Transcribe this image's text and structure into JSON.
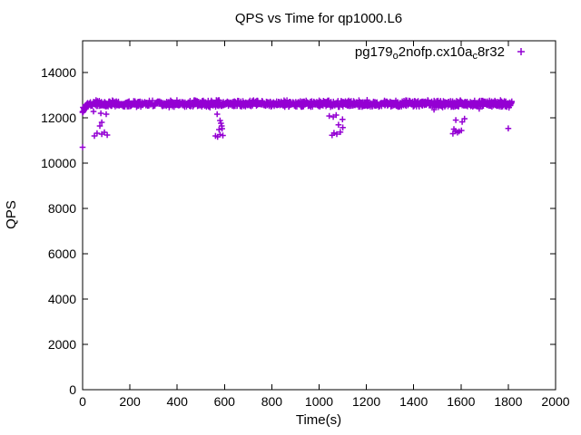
{
  "chart_data": {
    "type": "scatter",
    "title": "QPS vs Time for qp1000.L6",
    "xlabel": "Time(s)",
    "ylabel": "QPS",
    "xlim": [
      0,
      2000
    ],
    "ylim": [
      0,
      15400
    ],
    "xticks": [
      0,
      200,
      400,
      600,
      800,
      1000,
      1200,
      1400,
      1600,
      1800,
      2000
    ],
    "yticks": [
      0,
      2000,
      4000,
      6000,
      8000,
      10000,
      12000,
      14000
    ],
    "grid": false,
    "legend_position": "top-right-inside",
    "marker": "plus",
    "marker_color": "#9400d3",
    "series": [
      {
        "name": "pg179_o2nofp.cx10a_c8r32",
        "name_segments": [
          {
            "text": "pg179",
            "sub": false
          },
          {
            "text": "o",
            "sub": true
          },
          {
            "text": "2nofp.cx10a",
            "sub": false
          },
          {
            "text": "c",
            "sub": true
          },
          {
            "text": "8r32",
            "sub": false
          }
        ],
        "band": {
          "t_start": 0,
          "t_end": 1815,
          "step": 1.5,
          "qps_mean": 12620,
          "jitter": 170,
          "ramp_until": 25,
          "ramp_drop": 300
        },
        "outliers": [
          [
            0,
            12240
          ],
          [
            2,
            12260
          ],
          [
            6,
            12330
          ],
          [
            11,
            12400
          ],
          [
            16,
            12470
          ],
          [
            46,
            12280
          ],
          [
            77,
            12200
          ],
          [
            100,
            12160
          ],
          [
            81,
            11800
          ],
          [
            73,
            11640
          ],
          [
            50,
            11200
          ],
          [
            61,
            11320
          ],
          [
            81,
            11280
          ],
          [
            92,
            11360
          ],
          [
            104,
            11240
          ],
          [
            0,
            10700
          ],
          [
            569,
            12160
          ],
          [
            581,
            11880
          ],
          [
            585,
            11760
          ],
          [
            588,
            11640
          ],
          [
            577,
            11480
          ],
          [
            590,
            11520
          ],
          [
            562,
            11200
          ],
          [
            571,
            11160
          ],
          [
            581,
            11260
          ],
          [
            593,
            11220
          ],
          [
            1043,
            12080
          ],
          [
            1060,
            12040
          ],
          [
            1072,
            12120
          ],
          [
            1099,
            11930
          ],
          [
            1082,
            11690
          ],
          [
            1100,
            11570
          ],
          [
            1063,
            11330
          ],
          [
            1075,
            11280
          ],
          [
            1090,
            11370
          ],
          [
            1055,
            11230
          ],
          [
            1486,
            12360
          ],
          [
            1578,
            11900
          ],
          [
            1605,
            11820
          ],
          [
            1615,
            11960
          ],
          [
            1570,
            11500
          ],
          [
            1577,
            11420
          ],
          [
            1585,
            11350
          ],
          [
            1592,
            11400
          ],
          [
            1602,
            11440
          ],
          [
            1566,
            11300
          ],
          [
            1677,
            12400
          ],
          [
            1800,
            11530
          ]
        ]
      }
    ]
  }
}
